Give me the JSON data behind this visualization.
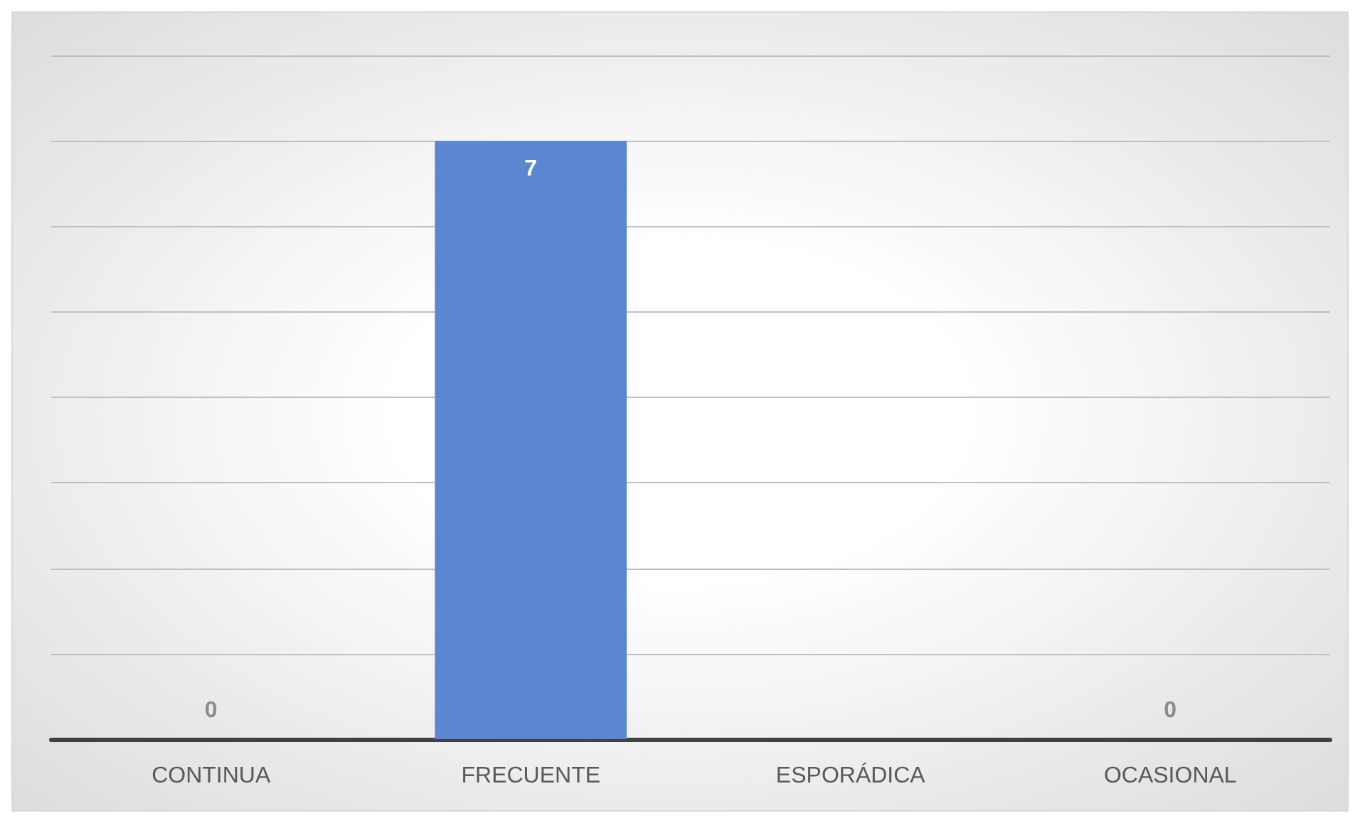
{
  "chart_data": {
    "type": "bar",
    "categories": [
      "CONTINUA",
      "FRECUENTE",
      "ESPORÁDICA",
      "OCASIONAL"
    ],
    "values": [
      0,
      7,
      0,
      0
    ],
    "color": "#5b86d0",
    "value_labels": [
      "0",
      "7",
      null,
      "0"
    ],
    "ylim": [
      0,
      8
    ],
    "yticks": [
      {
        "value": 0,
        "label": null
      },
      {
        "value": 1,
        "label": null
      },
      {
        "value": 2,
        "label": null
      },
      {
        "value": 3,
        "label": null
      },
      {
        "value": 4,
        "label": null
      },
      {
        "value": 5,
        "label": null
      },
      {
        "value": 6,
        "label": null
      },
      {
        "value": 7,
        "label": null
      },
      {
        "value": 8,
        "label": null
      }
    ],
    "tick_labels": "x",
    "grid": "y"
  }
}
